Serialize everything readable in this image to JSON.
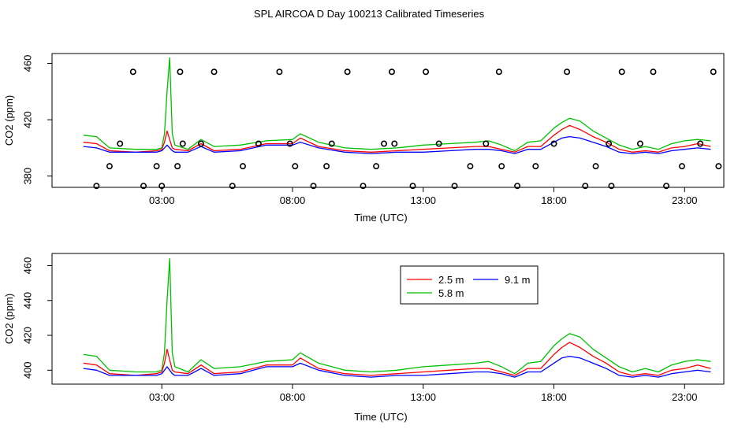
{
  "page_title": "SPL AIRCOA D  Day 100213  Calibrated Timeseries",
  "colors": {
    "red": "#ff0000",
    "green": "#00c000",
    "blue": "#0000ff",
    "points": "#000000",
    "axis": "#000000"
  },
  "chart_data": [
    {
      "type": "scatter+line",
      "title": "",
      "xlabel": "Time (UTC)",
      "ylabel": "CO2 (ppm)",
      "xlim": [
        -1.2,
        24.5
      ],
      "ylim": [
        372,
        467
      ],
      "x_ticks": [
        3,
        8,
        13,
        18,
        23
      ],
      "x_tick_labels": [
        "03:00",
        "08:00",
        "13:00",
        "18:00",
        "23:00"
      ],
      "y_ticks": [
        380,
        420,
        460
      ],
      "series": [
        {
          "name": "5.8 m",
          "color": "green",
          "x": [
            0.0,
            0.5,
            1.0,
            2.0,
            2.8,
            3.0,
            3.1,
            3.2,
            3.3,
            3.4,
            3.5,
            4.0,
            4.5,
            5.0,
            6.0,
            7.0,
            8.0,
            8.3,
            9.0,
            10.0,
            11.0,
            12.0,
            13.0,
            14.0,
            15.0,
            15.5,
            16.0,
            16.5,
            17.0,
            17.5,
            18.0,
            18.3,
            18.6,
            19.0,
            19.5,
            20.0,
            20.5,
            21.0,
            21.5,
            22.0,
            22.5,
            23.0,
            23.5,
            24.0
          ],
          "values": [
            409,
            408,
            400,
            399,
            399,
            400,
            410,
            440,
            464,
            410,
            402,
            399,
            406,
            401,
            402,
            405,
            406,
            410,
            404,
            400,
            399,
            400,
            402,
            403,
            404,
            405,
            402,
            398,
            404,
            405,
            414,
            418,
            421,
            419,
            412,
            407,
            402,
            399,
            401,
            399,
            403,
            405,
            406,
            405
          ]
        },
        {
          "name": "2.5 m",
          "color": "red",
          "x": [
            0.0,
            0.5,
            1.0,
            2.0,
            2.8,
            3.0,
            3.1,
            3.2,
            3.3,
            3.4,
            3.5,
            4.0,
            4.5,
            5.0,
            6.0,
            7.0,
            8.0,
            8.3,
            9.0,
            10.0,
            11.0,
            12.0,
            13.0,
            14.0,
            15.0,
            15.5,
            16.0,
            16.5,
            17.0,
            17.5,
            18.0,
            18.3,
            18.6,
            19.0,
            19.5,
            20.0,
            20.5,
            21.0,
            21.5,
            22.0,
            22.5,
            23.0,
            23.5,
            24.0
          ],
          "values": [
            404,
            403,
            398,
            397,
            398,
            399,
            404,
            412,
            406,
            400,
            399,
            398,
            403,
            398,
            399,
            403,
            403,
            407,
            401,
            398,
            397,
            398,
            399,
            400,
            401,
            401,
            399,
            397,
            401,
            401,
            409,
            413,
            416,
            413,
            408,
            404,
            399,
            397,
            398,
            397,
            400,
            401,
            403,
            401
          ]
        },
        {
          "name": "9.1 m",
          "color": "blue",
          "x": [
            0.0,
            0.5,
            1.0,
            2.0,
            2.8,
            3.0,
            3.1,
            3.2,
            3.3,
            3.4,
            3.5,
            4.0,
            4.5,
            5.0,
            6.0,
            7.0,
            8.0,
            8.3,
            9.0,
            10.0,
            11.0,
            12.0,
            13.0,
            14.0,
            15.0,
            15.5,
            16.0,
            16.5,
            17.0,
            17.5,
            18.0,
            18.3,
            18.6,
            19.0,
            19.5,
            20.0,
            20.5,
            21.0,
            21.5,
            22.0,
            22.5,
            23.0,
            23.5,
            24.0
          ],
          "values": [
            401,
            400,
            397,
            397,
            397,
            398,
            400,
            402,
            400,
            398,
            397,
            397,
            401,
            397,
            398,
            402,
            402,
            404,
            400,
            397,
            396,
            397,
            397,
            398,
            399,
            399,
            398,
            396,
            399,
            399,
            404,
            407,
            408,
            407,
            404,
            401,
            397,
            396,
            397,
            396,
            398,
            399,
            400,
            399
          ]
        },
        {
          "name": "points",
          "color": "points",
          "x": [
            0.5,
            1.0,
            1.4,
            1.9,
            2.3,
            2.8,
            3.0,
            3.6,
            3.7,
            3.8,
            4.5,
            5.0,
            5.7,
            6.1,
            6.7,
            7.5,
            7.9,
            8.1,
            8.8,
            9.3,
            9.5,
            10.1,
            10.7,
            11.2,
            11.5,
            11.8,
            11.9,
            12.6,
            13.1,
            13.6,
            14.2,
            14.8,
            15.4,
            15.9,
            16.0,
            16.6,
            17.3,
            18.0,
            18.5,
            19.2,
            19.6,
            20.1,
            20.2,
            20.6,
            21.3,
            21.8,
            22.3,
            22.9,
            23.6,
            24.1,
            24.3
          ],
          "values": [
            373,
            387,
            403,
            454,
            373,
            387,
            373,
            387,
            454,
            403,
            403,
            454,
            373,
            387,
            403,
            454,
            403,
            387,
            373,
            387,
            403,
            454,
            373,
            387,
            403,
            454,
            403,
            373,
            454,
            403,
            373,
            387,
            403,
            454,
            387,
            373,
            387,
            403,
            454,
            373,
            387,
            403,
            373,
            454,
            403,
            454,
            373,
            387,
            403,
            454,
            387
          ]
        }
      ]
    },
    {
      "type": "line",
      "title": "",
      "xlabel": "Time (UTC)",
      "ylabel": "CO2 (ppm)",
      "xlim": [
        -1.2,
        24.5
      ],
      "ylim": [
        392,
        467
      ],
      "x_ticks": [
        3,
        8,
        13,
        18,
        23
      ],
      "x_tick_labels": [
        "03:00",
        "08:00",
        "13:00",
        "18:00",
        "23:00"
      ],
      "y_ticks": [
        400,
        420,
        440,
        460
      ],
      "legend": {
        "placement": "top-center",
        "entries": [
          {
            "label": "2.5 m",
            "color": "red"
          },
          {
            "label": "9.1 m",
            "color": "blue"
          },
          {
            "label": "5.8 m",
            "color": "green"
          }
        ]
      },
      "series": [
        {
          "name": "5.8 m",
          "color": "green",
          "x": [
            0.0,
            0.5,
            1.0,
            2.0,
            2.8,
            3.0,
            3.1,
            3.2,
            3.3,
            3.4,
            3.5,
            4.0,
            4.5,
            5.0,
            6.0,
            7.0,
            8.0,
            8.3,
            9.0,
            10.0,
            11.0,
            12.0,
            13.0,
            14.0,
            15.0,
            15.5,
            16.0,
            16.5,
            17.0,
            17.5,
            18.0,
            18.3,
            18.6,
            19.0,
            19.5,
            20.0,
            20.5,
            21.0,
            21.5,
            22.0,
            22.5,
            23.0,
            23.5,
            24.0
          ],
          "values": [
            409,
            408,
            400,
            399,
            399,
            400,
            410,
            440,
            464,
            410,
            402,
            399,
            406,
            401,
            402,
            405,
            406,
            410,
            404,
            400,
            399,
            400,
            402,
            403,
            404,
            405,
            402,
            398,
            404,
            405,
            414,
            418,
            421,
            419,
            412,
            407,
            402,
            399,
            401,
            399,
            403,
            405,
            406,
            405
          ]
        },
        {
          "name": "2.5 m",
          "color": "red",
          "x": [
            0.0,
            0.5,
            1.0,
            2.0,
            2.8,
            3.0,
            3.1,
            3.2,
            3.3,
            3.4,
            3.5,
            4.0,
            4.5,
            5.0,
            6.0,
            7.0,
            8.0,
            8.3,
            9.0,
            10.0,
            11.0,
            12.0,
            13.0,
            14.0,
            15.0,
            15.5,
            16.0,
            16.5,
            17.0,
            17.5,
            18.0,
            18.3,
            18.6,
            19.0,
            19.5,
            20.0,
            20.5,
            21.0,
            21.5,
            22.0,
            22.5,
            23.0,
            23.5,
            24.0
          ],
          "values": [
            404,
            403,
            398,
            397,
            398,
            399,
            404,
            412,
            406,
            400,
            399,
            398,
            403,
            398,
            399,
            403,
            403,
            407,
            401,
            398,
            397,
            398,
            399,
            400,
            401,
            401,
            399,
            397,
            401,
            401,
            409,
            413,
            416,
            413,
            408,
            404,
            399,
            397,
            398,
            397,
            400,
            401,
            403,
            401
          ]
        },
        {
          "name": "9.1 m",
          "color": "blue",
          "x": [
            0.0,
            0.5,
            1.0,
            2.0,
            2.8,
            3.0,
            3.1,
            3.2,
            3.3,
            3.4,
            3.5,
            4.0,
            4.5,
            5.0,
            6.0,
            7.0,
            8.0,
            8.3,
            9.0,
            10.0,
            11.0,
            12.0,
            13.0,
            14.0,
            15.0,
            15.5,
            16.0,
            16.5,
            17.0,
            17.5,
            18.0,
            18.3,
            18.6,
            19.0,
            19.5,
            20.0,
            20.5,
            21.0,
            21.5,
            22.0,
            22.5,
            23.0,
            23.5,
            24.0
          ],
          "values": [
            401,
            400,
            397,
            397,
            397,
            398,
            400,
            402,
            400,
            398,
            397,
            397,
            401,
            397,
            398,
            402,
            402,
            404,
            400,
            397,
            396,
            397,
            397,
            398,
            399,
            399,
            398,
            396,
            399,
            399,
            404,
            407,
            408,
            407,
            404,
            401,
            397,
            396,
            397,
            396,
            398,
            399,
            400,
            399
          ]
        }
      ]
    }
  ]
}
